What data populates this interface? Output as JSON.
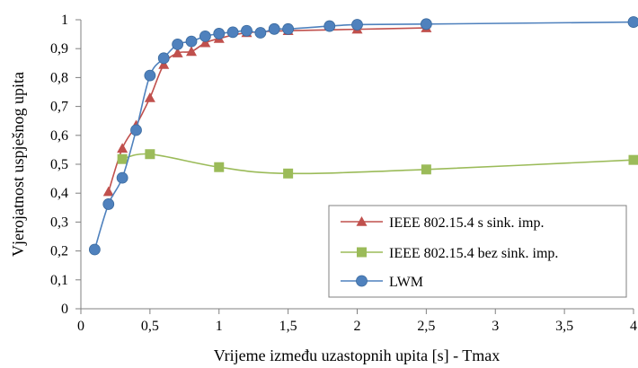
{
  "chart_data": {
    "type": "line",
    "xlabel": "Vrijeme između uzastopnih upita [s] - Tmax",
    "ylabel": "Vjerojatnost uspješnog upita",
    "xlim": [
      0,
      4
    ],
    "ylim": [
      0,
      1
    ],
    "xticks": [
      0,
      0.5,
      1,
      1.5,
      2,
      2.5,
      3,
      3.5,
      4
    ],
    "xtick_labels": [
      "0",
      "0,5",
      "1",
      "1,5",
      "2",
      "2,5",
      "3",
      "3,5",
      "4"
    ],
    "yticks": [
      0,
      0.1,
      0.2,
      0.3,
      0.4,
      0.5,
      0.6,
      0.7,
      0.8,
      0.9,
      1
    ],
    "ytick_labels": [
      "0",
      "0,1",
      "0,2",
      "0,3",
      "0,4",
      "0,5",
      "0,6",
      "0,7",
      "0,8",
      "0,9",
      "1"
    ],
    "grid": false,
    "legend_position": "bottom-right",
    "series": [
      {
        "name": "IEEE 802.15.4 s sink. imp.",
        "color": "#C0504D",
        "marker": "triangle",
        "x": [
          0.2,
          0.3,
          0.4,
          0.5,
          0.6,
          0.7,
          0.8,
          0.9,
          1.0,
          1.2,
          1.5,
          2.0,
          2.5
        ],
        "y": [
          0.405,
          0.555,
          0.635,
          0.73,
          0.845,
          0.885,
          0.89,
          0.92,
          0.935,
          0.955,
          0.962,
          0.967,
          0.972
        ]
      },
      {
        "name": "IEEE 802.15.4 bez sink. imp.",
        "color": "#9BBB59",
        "marker": "square",
        "x": [
          0.3,
          0.5,
          1.0,
          1.5,
          2.5,
          4.0
        ],
        "y": [
          0.518,
          0.535,
          0.49,
          0.468,
          0.482,
          0.515
        ]
      },
      {
        "name": "LWM",
        "color": "#4F81BD",
        "marker": "circle",
        "x": [
          0.1,
          0.2,
          0.3,
          0.4,
          0.5,
          0.6,
          0.7,
          0.8,
          0.9,
          1.0,
          1.1,
          1.2,
          1.3,
          1.4,
          1.5,
          1.8,
          2.0,
          2.5,
          4.0
        ],
        "y": [
          0.205,
          0.362,
          0.453,
          0.618,
          0.807,
          0.867,
          0.915,
          0.925,
          0.943,
          0.952,
          0.957,
          0.962,
          0.955,
          0.968,
          0.968,
          0.978,
          0.983,
          0.985,
          0.992
        ]
      }
    ]
  }
}
